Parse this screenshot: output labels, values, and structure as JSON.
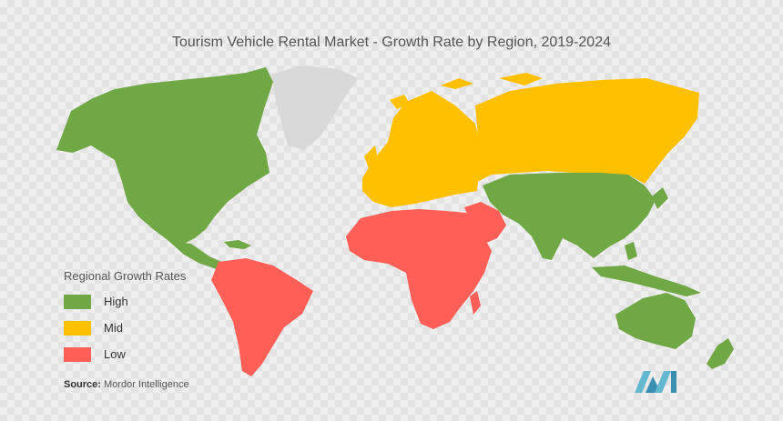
{
  "title": "Tourism Vehicle Rental Market - Growth Rate by Region, 2019-2024",
  "legend": {
    "heading": "Regional Growth Rates",
    "items": [
      {
        "label": "High",
        "color": "#70a846"
      },
      {
        "label": "Mid",
        "color": "#ffc000"
      },
      {
        "label": "Low",
        "color": "#ff5f57"
      }
    ]
  },
  "source": {
    "label": "Source:",
    "text": "Mordor Intelligence"
  },
  "colors": {
    "no_data": "#d9d9d9",
    "logo": "#63b8d0"
  },
  "regions": [
    {
      "name": "North America",
      "rate": "High"
    },
    {
      "name": "Greenland",
      "rate": "No data"
    },
    {
      "name": "South America",
      "rate": "Low"
    },
    {
      "name": "Europe",
      "rate": "Mid"
    },
    {
      "name": "Russia",
      "rate": "Mid"
    },
    {
      "name": "Africa",
      "rate": "Low"
    },
    {
      "name": "Middle East",
      "rate": "Low"
    },
    {
      "name": "Asia-Pacific",
      "rate": "High"
    },
    {
      "name": "Australia",
      "rate": "High"
    }
  ]
}
